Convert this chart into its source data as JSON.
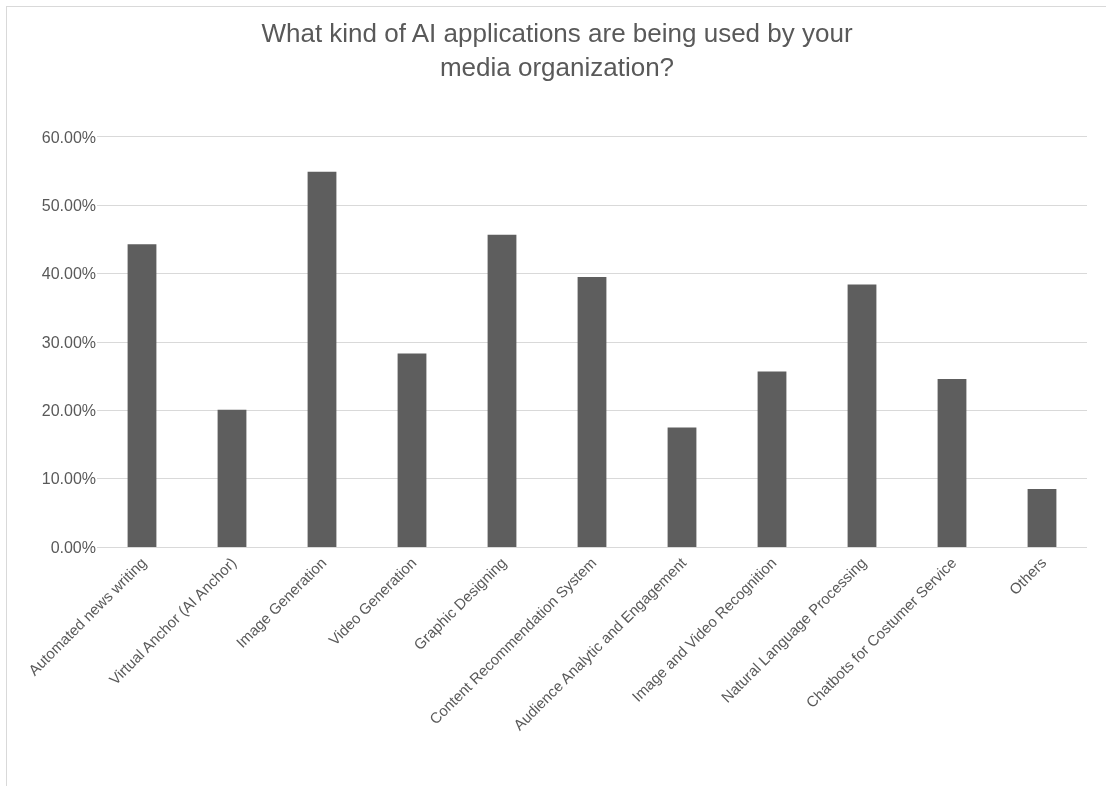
{
  "chart_data": {
    "type": "bar",
    "title": "What kind of AI applications are being used by your media organization?",
    "categories": [
      "Automated news writing",
      "Virtual Anchor (AI Anchor)",
      "Image Generation",
      "Video Generation",
      "Graphic Designing",
      "Content Recommendation System",
      "Audience Analytic and Engagement",
      "Image and Video Recognition",
      "Natural Language Processing",
      "Chatbots for Costumer Service",
      "Others"
    ],
    "values": [
      44.3,
      20.1,
      54.9,
      28.3,
      45.7,
      39.5,
      17.5,
      25.7,
      38.4,
      24.6,
      8.5
    ],
    "color": "#5e5e5e",
    "ylim": [
      0,
      60
    ],
    "yticks": [
      {
        "value": 0,
        "label": "0.00%"
      },
      {
        "value": 10,
        "label": "10.00%"
      },
      {
        "value": 20,
        "label": "20.00%"
      },
      {
        "value": 30,
        "label": "30.00%"
      },
      {
        "value": 40,
        "label": "40.00%"
      },
      {
        "value": 50,
        "label": "50.00%"
      },
      {
        "value": 60,
        "label": "60.00%"
      }
    ],
    "grid": "y"
  }
}
